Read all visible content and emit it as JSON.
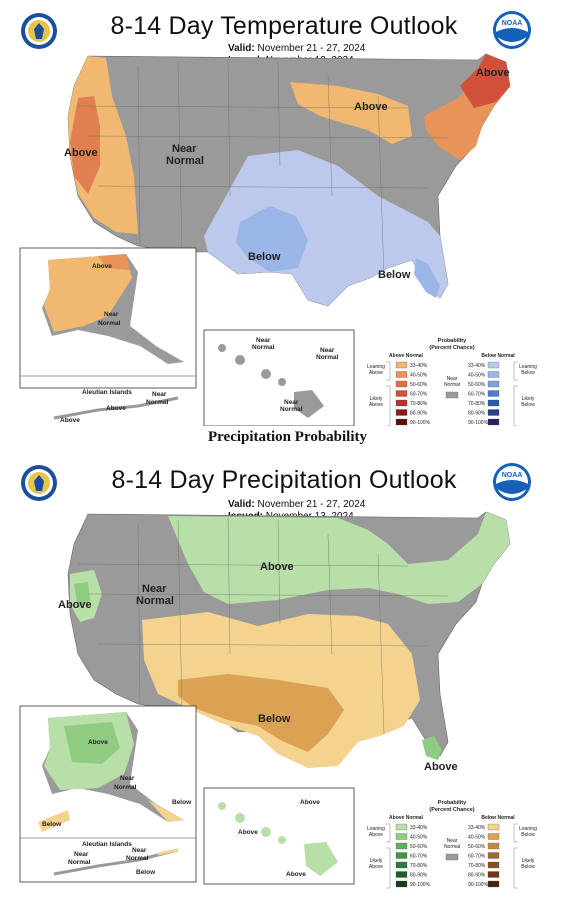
{
  "temperature": {
    "title": "8-14 Day Temperature Outlook",
    "valid_label": "Valid:",
    "valid_value": "November 21 - 27, 2024",
    "issued_label": "Issued:",
    "issued_value": "November 13, 2024",
    "region_labels": {
      "west_above": "Above",
      "near_normal": "Near Normal",
      "great_lakes_above": "Above",
      "maine_above": "Above",
      "texas_below": "Below",
      "southeast_below": "Below",
      "alaska_above": "Above",
      "alaska_near": "Near Normal",
      "aleutian_title": "Aleutian Islands",
      "aleutian_above": "Above",
      "aleutian_near": "Near Normal",
      "aleutian_above2": "Above",
      "hawaii_near1": "Near Normal",
      "hawaii_near2": "Near Normal",
      "hawaii_near3": "Near Normal"
    },
    "legend": {
      "title": "Probability",
      "subtitle": "(Percent Chance)",
      "above_header": "Above Normal",
      "below_header": "Below Normal",
      "leaning_above": "Leaning Above",
      "likely_above": "Likely Above",
      "leaning_below": "Leaning Below",
      "likely_below": "Likely Below",
      "near_normal": "Near Normal",
      "ranges": [
        "33-40%",
        "40-50%",
        "50-60%",
        "60-70%",
        "70-80%",
        "80-90%",
        "90-100%"
      ],
      "above_colors": [
        "#f0b870",
        "#e8935a",
        "#e07040",
        "#d0503a",
        "#b83030",
        "#8a1a1a",
        "#5a0d0d"
      ],
      "below_colors": [
        "#bcc8ec",
        "#9ab6e6",
        "#7ca2dc",
        "#4f7fcb",
        "#2b5bb0",
        "#263f8a",
        "#2a1f5e"
      ],
      "near_color": "#9a9a9a"
    }
  },
  "middle_heading": "Precipitation Probability",
  "precipitation": {
    "title": "8-14 Day Precipitation Outlook",
    "valid_label": "Valid:",
    "valid_value": "November 21 - 27, 2024",
    "issued_label": "Issued:",
    "issued_value": "November 13, 2024",
    "region_labels": {
      "west_above": "Above",
      "near_normal": "Near Normal",
      "north_above": "Above",
      "south_below": "Below",
      "florida_above": "Above",
      "alaska_above": "Above",
      "alaska_near": "Near Normal",
      "alaska_below_se": "Below",
      "alaska_below_sw": "Below",
      "aleutian_title": "Aleutian Islands",
      "aleutian_near1": "Near Normal",
      "aleutian_near2": "Near Normal",
      "aleutian_below": "Below",
      "hawaii_above1": "Above",
      "hawaii_above2": "Above",
      "hawaii_above3": "Above"
    },
    "legend": {
      "title": "Probability",
      "subtitle": "(Percent Chance)",
      "above_header": "Above Normal",
      "below_header": "Below Normal",
      "leaning_above": "Leaning Above",
      "likely_above": "Likely Above",
      "leaning_below": "Leaning Below",
      "likely_below": "Likely Below",
      "near_normal": "Near Normal",
      "ranges": [
        "33-40%",
        "40-50%",
        "50-60%",
        "60-70%",
        "70-80%",
        "80-90%",
        "90-100%"
      ],
      "above_colors": [
        "#b9dfa8",
        "#8fcb80",
        "#5fae5a",
        "#3f9448",
        "#2d7a3a",
        "#1e5c2a",
        "#123d1b"
      ],
      "below_colors": [
        "#f3d38e",
        "#dba254",
        "#c48a3a",
        "#a8682c",
        "#8a4e22",
        "#6e3818",
        "#4a2410"
      ],
      "near_color": "#9a9a9a"
    }
  }
}
